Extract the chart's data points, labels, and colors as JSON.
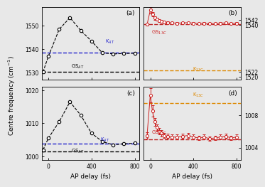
{
  "panel_a": {
    "x": [
      -50,
      0,
      100,
      200,
      300,
      400,
      500,
      600,
      700,
      800
    ],
    "y": [
      1530.3,
      1537.0,
      1548.5,
      1553.5,
      1548.0,
      1543.5,
      1538.5,
      1538.0,
      1538.2,
      1538.3
    ],
    "gs_line": 1530.3,
    "k_line": 1538.5,
    "ylim": [
      1527,
      1558
    ],
    "yticks": [
      1530,
      1540,
      1550
    ],
    "gs_label": "GS$_{AT}$",
    "k_label": "K$_{AT}$",
    "panel_label": "(a)"
  },
  "panel_b": {
    "x": [
      -30,
      0,
      20,
      40,
      60,
      80,
      100,
      130,
      160,
      200,
      250,
      300,
      350,
      400,
      450,
      500,
      550,
      600,
      650,
      700,
      750,
      800
    ],
    "y": [
      1540.3,
      1545.8,
      1544.2,
      1542.8,
      1542.3,
      1541.8,
      1541.5,
      1541.2,
      1541.0,
      1540.9,
      1540.8,
      1540.9,
      1541.0,
      1540.8,
      1540.7,
      1540.8,
      1540.6,
      1540.7,
      1540.8,
      1540.9,
      1540.7,
      1540.8
    ],
    "yerr": [
      0.4,
      1.2,
      0.9,
      0.7,
      0.6,
      0.5,
      0.5,
      0.4,
      0.4,
      0.3,
      0.3,
      0.3,
      0.3,
      0.3,
      0.3,
      0.3,
      0.3,
      0.3,
      0.3,
      0.3,
      0.3,
      0.3
    ],
    "gs_line": 1540.5,
    "k_line": 1522.5,
    "ylim": [
      1519,
      1547
    ],
    "yticks": [
      1520,
      1522,
      1540,
      1542
    ],
    "gs_label": "GS$_{13C}$",
    "k_label": "K$_{13C}$",
    "panel_label": "(b)"
  },
  "panel_c": {
    "x": [
      -50,
      0,
      100,
      200,
      300,
      400,
      500,
      600,
      700,
      800
    ],
    "y": [
      1002.0,
      1005.5,
      1010.5,
      1016.5,
      1012.5,
      1007.0,
      1004.5,
      1003.5,
      1003.8,
      1004.0
    ],
    "gs_line": 1001.5,
    "k_line": 1003.8,
    "ylim": [
      999,
      1021
    ],
    "yticks": [
      1000,
      1010,
      1020
    ],
    "gs_label": "GS$_{AT}$",
    "k_label": "K$_{AT}$",
    "panel_label": "(c)"
  },
  "panel_d": {
    "x": [
      -30,
      0,
      20,
      40,
      60,
      80,
      100,
      130,
      160,
      200,
      250,
      300,
      350,
      400,
      450,
      500,
      550,
      600,
      650,
      700,
      750,
      800
    ],
    "y": [
      1005.5,
      1010.5,
      1008.5,
      1007.2,
      1006.5,
      1006.0,
      1005.8,
      1005.5,
      1005.4,
      1005.3,
      1005.3,
      1005.4,
      1005.5,
      1005.3,
      1005.2,
      1005.3,
      1005.1,
      1005.2,
      1005.3,
      1005.4,
      1005.2,
      1005.3
    ],
    "yerr": [
      0.4,
      0.9,
      0.7,
      0.5,
      0.4,
      0.4,
      0.4,
      0.3,
      0.3,
      0.3,
      0.3,
      0.3,
      0.3,
      0.3,
      0.3,
      0.3,
      0.3,
      0.3,
      0.3,
      0.3,
      0.3,
      0.3
    ],
    "gs_line": 1005.0,
    "k_line": 1009.5,
    "ylim": [
      1002.5,
      1011.5
    ],
    "yticks": [
      1004,
      1008
    ],
    "gs_label": "GS$_{13C}$",
    "k_label": "K$_{13C}$",
    "panel_label": "(d)"
  },
  "xlabel": "AP delay (fs)",
  "ylabel": "Centre frequency (cm$^{-1}$)",
  "xlim": [
    -60,
    840
  ],
  "xticks": [
    0,
    400,
    800
  ],
  "color_black": "#000000",
  "color_blue": "#2222cc",
  "color_red": "#cc2222",
  "color_orange": "#dd8800",
  "color_dark_red": "#bb2222",
  "bg_color": "#e8e8e8"
}
